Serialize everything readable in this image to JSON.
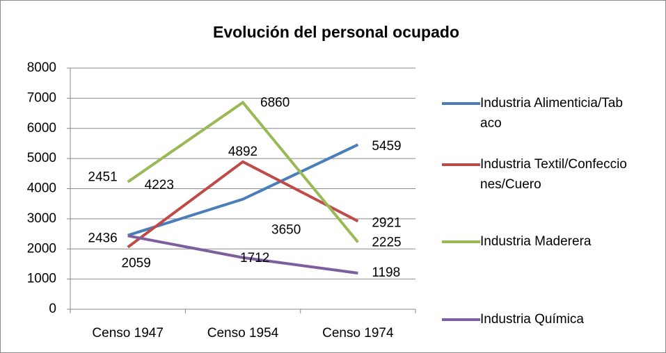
{
  "chart_data": {
    "type": "line",
    "title": "Evolución del personal ocupado",
    "categories": [
      "Censo 1947",
      "Censo 1954",
      "Censo 1974"
    ],
    "series": [
      {
        "name": "Industria Alimenticia/Tabaco",
        "color": "#4a7ebb",
        "values": [
          2451,
          3650,
          5459
        ]
      },
      {
        "name": "Industria Textil/Confecciones/Cuero",
        "color": "#be4b48",
        "values": [
          2059,
          4892,
          2921
        ]
      },
      {
        "name": "Industria Maderera",
        "color": "#98b954",
        "values": [
          4223,
          6860,
          2225
        ]
      },
      {
        "name": "Industria Química",
        "color": "#7d5fa0",
        "values": [
          2436,
          1712,
          1198
        ]
      }
    ],
    "ylim": [
      0,
      8000
    ],
    "yticks": [
      0,
      1000,
      2000,
      3000,
      4000,
      5000,
      6000,
      7000,
      8000
    ],
    "grid": true,
    "legend": "right"
  }
}
